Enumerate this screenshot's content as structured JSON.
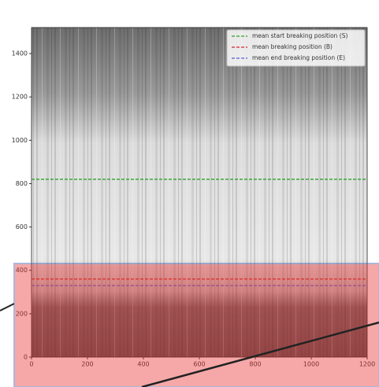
{
  "chart_data": {
    "type": "hline",
    "xlim": [
      0,
      1200
    ],
    "ylim": [
      0,
      1520
    ],
    "xticks": [
      0,
      200,
      400,
      600,
      800,
      1000,
      1200
    ],
    "yticks": [
      0,
      200,
      400,
      600,
      800,
      1000,
      1200,
      1400
    ],
    "legend": "upper right",
    "series": [
      {
        "name": "mean start breaking position (S)",
        "color": "#2ca02c",
        "values": [
          820
        ]
      },
      {
        "name": "mean breaking position (B)",
        "color": "#d62728",
        "values": [
          360
        ]
      },
      {
        "name": "mean end breaking position (E)",
        "color": "#5b5bd6",
        "values": [
          330
        ]
      }
    ]
  }
}
